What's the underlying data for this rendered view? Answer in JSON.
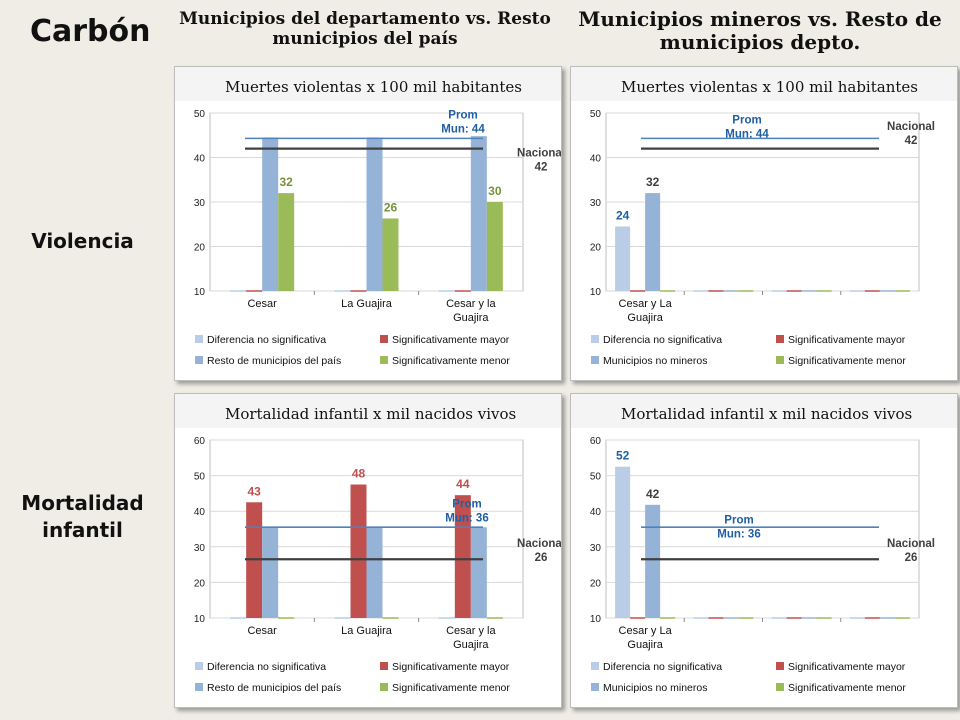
{
  "page": {
    "title": "Carbón",
    "col1_header": "Municipios del departamento vs. Resto municipios del país",
    "col2_header": "Municipios mineros vs. Resto de municipios depto.",
    "row1_label": "Violencia",
    "row2_label": "Mortalidad infantil"
  },
  "colors": {
    "no_sig": "#b9cde6",
    "sig_mayor": "#c0504d",
    "sig_menor": "#9bbb59",
    "comparison": "#95b3d7",
    "prom_line": "#4f81bd",
    "nacional_line": "#404040",
    "label_blue": "#1f5fa5",
    "label_red": "#c0504d",
    "label_green": "#76923c"
  },
  "chart_data": [
    {
      "id": "violencia-depto",
      "type": "bar",
      "title": "Muertes violentas x 100 mil habitantes",
      "categories": [
        "Cesar",
        "La Guajira",
        "Cesar y la Guajira"
      ],
      "ylim": [
        10,
        50
      ],
      "yticks": [
        10,
        20,
        30,
        40,
        50
      ],
      "series": [
        {
          "name": "Diferencia no significativa",
          "color": "no_sig",
          "values": [
            null,
            null,
            null
          ]
        },
        {
          "name": "Significativamente mayor",
          "color": "sig_mayor",
          "values": [
            null,
            null,
            null
          ]
        },
        {
          "name": "Resto de municipios del país",
          "color": "comparison",
          "values": [
            44.5,
            44.5,
            44.8
          ]
        },
        {
          "name": "Significativamente menor",
          "color": "sig_menor",
          "values": [
            32,
            26.3,
            30
          ]
        }
      ],
      "bar_labels": [
        {
          "text": "32",
          "category": 0,
          "series": 3,
          "value": 32,
          "color": "label_green"
        },
        {
          "text": "26",
          "category": 1,
          "series": 3,
          "value": 26.3,
          "color": "label_green"
        },
        {
          "text": "30",
          "category": 2,
          "series": 3,
          "value": 30,
          "color": "label_green"
        }
      ],
      "ref_lines": [
        {
          "value": 44.3,
          "label": [
            "Prom",
            "Mun:  44"
          ],
          "color": "prom_line",
          "text_color": "label_blue"
        },
        {
          "value": 42,
          "label": [
            "Nacional",
            "42"
          ],
          "color": "nacional_line",
          "text_color": "nacional_line"
        }
      ]
    },
    {
      "id": "violencia-mineros",
      "type": "bar",
      "title": "Muertes violentas x 100 mil habitantes",
      "categories": [
        "Cesar y La Guajira",
        "",
        "",
        ""
      ],
      "ylim": [
        10,
        50
      ],
      "yticks": [
        10,
        20,
        30,
        40,
        50
      ],
      "series": [
        {
          "name": "Diferencia no significativa",
          "color": "no_sig",
          "values": [
            24.5,
            null,
            null,
            null
          ]
        },
        {
          "name": "Significativamente mayor",
          "color": "sig_mayor",
          "values": [
            null,
            null,
            null,
            null
          ]
        },
        {
          "name": "Municipios no mineros",
          "color": "comparison",
          "values": [
            32,
            null,
            null,
            null
          ]
        },
        {
          "name": "Significativamente menor",
          "color": "sig_menor",
          "values": [
            null,
            null,
            null,
            null
          ]
        }
      ],
      "bar_labels": [
        {
          "text": "24",
          "category": 0,
          "series": 0,
          "value": 24.5,
          "color": "label_blue"
        },
        {
          "text": "32",
          "category": 0,
          "series": 2,
          "value": 32,
          "color": "nacional_line"
        }
      ],
      "ref_lines": [
        {
          "value": 44.3,
          "label": [
            "Prom",
            "Mun:  44"
          ],
          "color": "prom_line",
          "text_color": "label_blue"
        },
        {
          "value": 42,
          "label": [
            "Nacional",
            "42"
          ],
          "color": "nacional_line",
          "text_color": "nacional_line"
        }
      ]
    },
    {
      "id": "mortalidad-depto",
      "type": "bar",
      "title": "Mortalidad infantil x mil nacidos vivos",
      "categories": [
        "Cesar",
        "La Guajira",
        "Cesar y la Guajira"
      ],
      "ylim": [
        10,
        60
      ],
      "yticks": [
        10,
        20,
        30,
        40,
        50,
        60
      ],
      "series": [
        {
          "name": "Diferencia no significativa",
          "color": "no_sig",
          "values": [
            null,
            null,
            null
          ]
        },
        {
          "name": "Significativamente mayor",
          "color": "sig_mayor",
          "values": [
            42.5,
            47.5,
            44.5
          ]
        },
        {
          "name": "Resto de municipios del país",
          "color": "comparison",
          "values": [
            35.5,
            35.5,
            35.5
          ]
        },
        {
          "name": "Significativamente menor",
          "color": "sig_menor",
          "values": [
            null,
            null,
            null
          ]
        }
      ],
      "bar_labels": [
        {
          "text": "43",
          "category": 0,
          "series": 1,
          "value": 42.5,
          "color": "label_red"
        },
        {
          "text": "48",
          "category": 1,
          "series": 1,
          "value": 47.5,
          "color": "label_red"
        },
        {
          "text": "44",
          "category": 2,
          "series": 1,
          "value": 44.5,
          "color": "label_red"
        }
      ],
      "ref_lines": [
        {
          "value": 35.5,
          "label": [
            "Prom",
            "Mun:  36"
          ],
          "color": "prom_line",
          "text_color": "label_blue"
        },
        {
          "value": 26.5,
          "label": [
            "Nacional",
            "26"
          ],
          "color": "nacional_line",
          "text_color": "nacional_line"
        }
      ]
    },
    {
      "id": "mortalidad-mineros",
      "type": "bar",
      "title": "Mortalidad infantil x mil nacidos vivos",
      "categories": [
        "Cesar y La Guajira",
        "",
        "",
        ""
      ],
      "ylim": [
        10,
        60
      ],
      "yticks": [
        10,
        20,
        30,
        40,
        50,
        60
      ],
      "series": [
        {
          "name": "Diferencia no significativa",
          "color": "no_sig",
          "values": [
            52.5,
            null,
            null,
            null
          ]
        },
        {
          "name": "Significativamente mayor",
          "color": "sig_mayor",
          "values": [
            null,
            null,
            null,
            null
          ]
        },
        {
          "name": "Municipios no mineros",
          "color": "comparison",
          "values": [
            41.8,
            null,
            null,
            null
          ]
        },
        {
          "name": "Significativamente menor",
          "color": "sig_menor",
          "values": [
            null,
            null,
            null,
            null
          ]
        }
      ],
      "bar_labels": [
        {
          "text": "52",
          "category": 0,
          "series": 0,
          "value": 52.5,
          "color": "label_blue"
        },
        {
          "text": "42",
          "category": 0,
          "series": 2,
          "value": 41.8,
          "color": "nacional_line"
        }
      ],
      "ref_lines": [
        {
          "value": 35.5,
          "label": [
            "Prom",
            "Mun:  36"
          ],
          "color": "prom_line",
          "text_color": "label_blue"
        },
        {
          "value": 26.5,
          "label": [
            "Nacional",
            "26"
          ],
          "color": "nacional_line",
          "text_color": "nacional_line"
        }
      ]
    }
  ]
}
